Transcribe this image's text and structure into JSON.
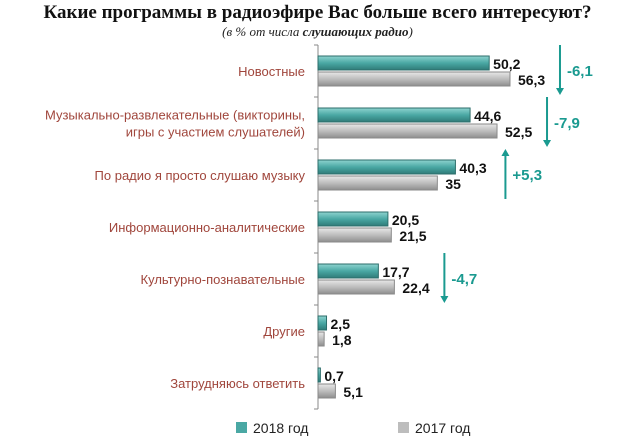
{
  "title": "Какие программы в радиоэфире Вас больше всего интересуют?",
  "subtitle_prefix": "(в % от числа ",
  "subtitle_bold": "слушающих радио",
  "subtitle_suffix": ")",
  "chart_data": {
    "type": "bar",
    "orientation": "horizontal",
    "categories": [
      "Новостные",
      "Музыкально-развлекательные (викторины, игры с участием слушателей)",
      "По радио я просто слушаю музыку",
      "Информационно-аналитические",
      "Культурно-познавательные",
      "Другие",
      "Затрудняюсь ответить"
    ],
    "category_lines": [
      [
        "Новостные"
      ],
      [
        "Музыкально-развлекательные (викторины,",
        "игры с участием слушателей)"
      ],
      [
        "По радио я просто слушаю музыку"
      ],
      [
        "Информационно-аналитические"
      ],
      [
        "Культурно-познавательные"
      ],
      [
        "Другие"
      ],
      [
        "Затрудняюсь ответить"
      ]
    ],
    "series": [
      {
        "name": "2018 год",
        "values": [
          50.2,
          44.6,
          40.3,
          20.5,
          17.7,
          2.5,
          0.7
        ],
        "labels": [
          "50,2",
          "44,6",
          "40,3",
          "20,5",
          "17,7",
          "2,5",
          "0,7"
        ],
        "color": "#4aa8a4"
      },
      {
        "name": "2017 год",
        "values": [
          56.3,
          52.5,
          35,
          21.5,
          22.4,
          1.8,
          5.1
        ],
        "labels": [
          "56,3",
          "52,5",
          "35",
          "21,5",
          "22,4",
          "1,8",
          "5,1"
        ],
        "color": "#bdbdbd"
      }
    ],
    "changes": [
      {
        "category": "Новостные",
        "label": "-6,1",
        "direction": "down"
      },
      {
        "category": "Музыкально-развлекательные (викторины, игры с участием слушателей)",
        "label": "-7,9",
        "direction": "down"
      },
      {
        "category": "По радио я просто слушаю музыку",
        "label": "+5,3",
        "direction": "up"
      },
      {
        "category": "Культурно-познавательные",
        "label": "-4,7",
        "direction": "down"
      }
    ],
    "change_color": "#1a9a90",
    "category_label_color": "#a0463c",
    "legend_placement": "bottom",
    "grid": false
  }
}
